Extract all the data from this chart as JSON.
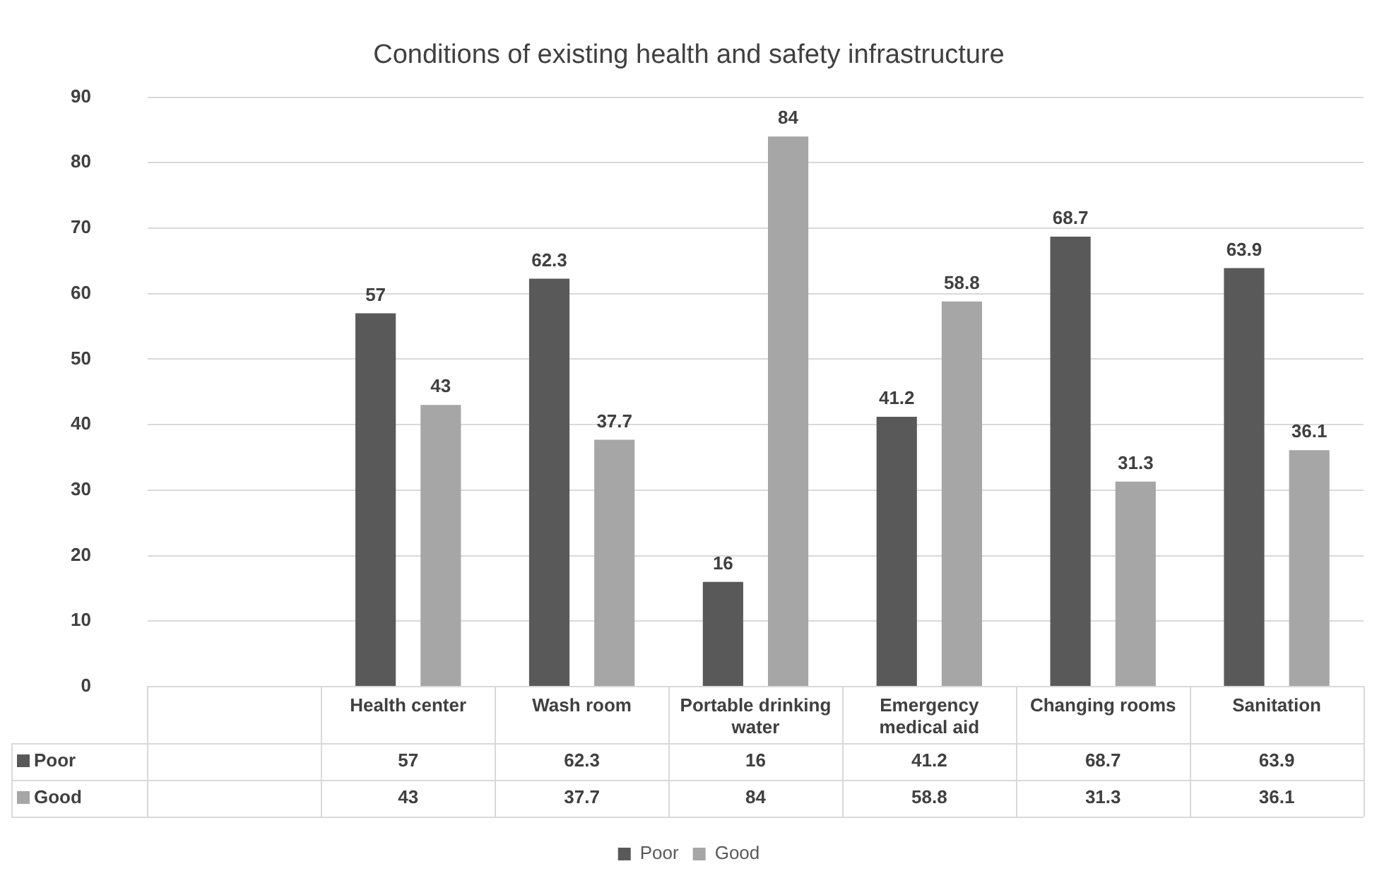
{
  "chart_data": {
    "type": "bar",
    "title": "Conditions of existing health and safety infrastructure",
    "categories": [
      null,
      "Health center",
      "Wash room",
      "Portable drinking water",
      "Emergency medical aid",
      "Changing rooms",
      "Sanitation"
    ],
    "series": [
      {
        "name": "Poor",
        "color": "#595959",
        "values": [
          null,
          57,
          62.3,
          16,
          41.2,
          68.7,
          63.9
        ]
      },
      {
        "name": "Good",
        "color": "#a6a6a6",
        "values": [
          null,
          43,
          37.7,
          84,
          58.8,
          31.3,
          36.1
        ]
      }
    ],
    "annotations": [
      "57",
      "62.3",
      "16",
      "41.2",
      "68.7",
      "63.9",
      "43",
      "37.7",
      "84",
      "58.8",
      "31.3",
      "36.1"
    ],
    "ylim": [
      0,
      90
    ],
    "yticks": [
      0,
      10,
      20,
      30,
      40,
      50,
      60,
      70,
      80,
      90
    ],
    "grid": "y",
    "legend": "bottom",
    "data_labels": true
  }
}
